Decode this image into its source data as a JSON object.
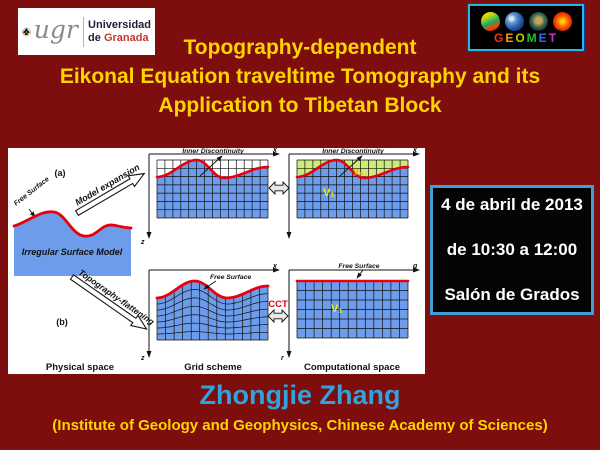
{
  "slide": {
    "background_color": "#7E0D0D",
    "title_color": "#FFD400",
    "title_lines": [
      "Topography-dependent",
      "Eikonal Equation traveltime Tomography and its",
      "Application to Tibetan Block"
    ],
    "speaker": "Zhongjie Zhang",
    "speaker_color": "#2EA3DC",
    "affiliation": "(Institute of Geology and Geophysics, Chinese Academy of Sciences)"
  },
  "logos": {
    "ugr": {
      "acronym": "ugr",
      "line1": "Universidad",
      "line2_prefix": "de ",
      "line2_place": "Granada"
    },
    "geomet": {
      "letters": [
        "G",
        "E",
        "O",
        "M",
        "E",
        "T"
      ],
      "letter_colors": [
        "#FF3300",
        "#FF9900",
        "#BBCC00",
        "#22BB33",
        "#3366FF",
        "#CC33CC"
      ],
      "border_color": "#1FB8E8",
      "globe_names": [
        "ocean-data-globe",
        "earth-globe",
        "terrain-globe",
        "thermal-globe"
      ]
    }
  },
  "event": {
    "date": "4 de abril de 2013",
    "time": "de 10:30 a 12:00",
    "venue": "Salón de Grados",
    "box_border_color": "#3D9ED8"
  },
  "figure": {
    "panel_a": "(a)",
    "panel_b": "(b)",
    "free_surface": "Free Surface",
    "irregular_surface_model": "Irregular Surface Model",
    "model_expansion": "Model expansion",
    "topography_flattening": "Topography-flattening",
    "inner_discontinuity": "Inner Discontinuity",
    "cct": "CCT",
    "v0": "V₀",
    "v1": "V₁",
    "axis_x": "x",
    "axis_z": "z",
    "axis_q": "q",
    "axis_r": "r",
    "caption_physical": "Physical space",
    "caption_grid": "Grid scheme",
    "caption_computational": "Computational space",
    "surface_color": "#E8000F",
    "cell_blue": "#6D9CEB",
    "cell_green": "#CDEB79"
  }
}
